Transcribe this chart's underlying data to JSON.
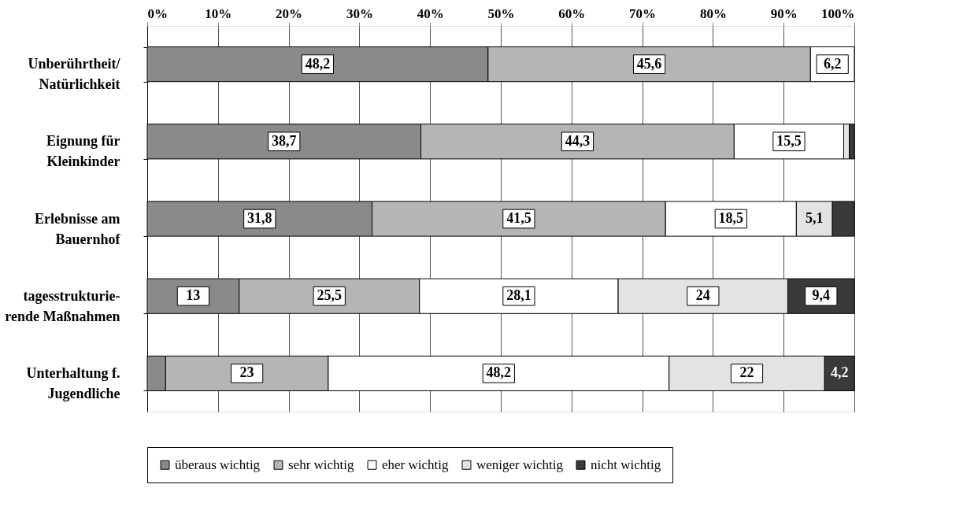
{
  "chart_data": {
    "type": "bar",
    "orientation": "horizontal",
    "stacked": true,
    "categories": [
      "Unberührtheit/\nNatürlichkeit",
      "Eignung für\nKleinkinder",
      "Erlebnisse am\nBauernhof",
      "tagesstrukturie-\nrende Maßnahmen",
      "Unterhaltung f.\nJugendliche"
    ],
    "series": [
      {
        "name": "überaus wichtig",
        "color": "#8a8a8a",
        "values": [
          48.2,
          38.7,
          31.8,
          13,
          2.6
        ],
        "value_labels": [
          "48,2",
          "38,7",
          "31,8",
          "13",
          null
        ]
      },
      {
        "name": "sehr wichtig",
        "color": "#b5b5b5",
        "values": [
          45.6,
          44.3,
          41.5,
          25.5,
          23
        ],
        "value_labels": [
          "45,6",
          "44,3",
          "41,5",
          "25,5",
          "23"
        ]
      },
      {
        "name": "eher wichtig",
        "color": "#ffffff",
        "values": [
          6.2,
          15.5,
          18.5,
          28.1,
          48.2
        ],
        "value_labels": [
          "6,2",
          "15,5",
          "18,5",
          "28,1",
          "48,2"
        ]
      },
      {
        "name": "weniger wichtig",
        "color": "#e3e3e3",
        "values": [
          null,
          0.8,
          5.1,
          24,
          22
        ],
        "value_labels": [
          null,
          null,
          "5,1",
          "24",
          "22"
        ]
      },
      {
        "name": "nicht wichtig",
        "color": "#3a3a3a",
        "values": [
          null,
          0.7,
          3.1,
          9.4,
          4.2
        ],
        "value_labels": [
          null,
          null,
          null,
          "9,4",
          "4,2"
        ]
      }
    ],
    "xlim": [
      0,
      100
    ],
    "xticks": [
      {
        "value": 0,
        "label": "0%"
      },
      {
        "value": 10,
        "label": "10%"
      },
      {
        "value": 20,
        "label": "20%"
      },
      {
        "value": 30,
        "label": "30%"
      },
      {
        "value": 40,
        "label": "40%"
      },
      {
        "value": 50,
        "label": "50%"
      },
      {
        "value": 60,
        "label": "60%"
      },
      {
        "value": 70,
        "label": "70%"
      },
      {
        "value": 80,
        "label": "80%"
      },
      {
        "value": 90,
        "label": "90%"
      },
      {
        "value": 100,
        "label": "100%"
      }
    ],
    "grid": "x",
    "legend": "bottom"
  }
}
